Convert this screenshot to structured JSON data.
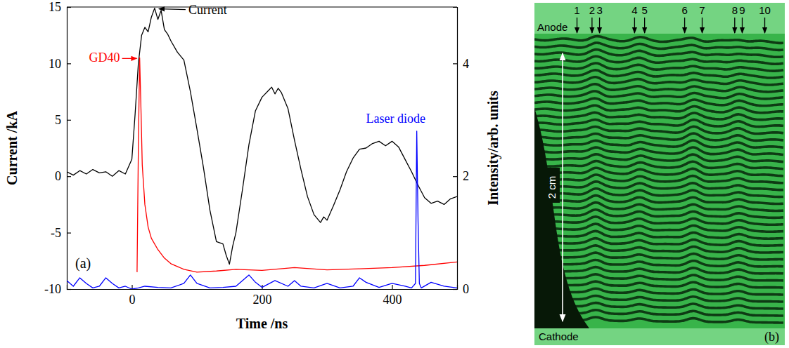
{
  "chart_data": {
    "type": "line",
    "panel_label": "(a)",
    "x_label": "Time /ns",
    "y_label": "Current /kA",
    "y2_label": "Intensity/arb. units",
    "xlim": [
      -100,
      500
    ],
    "xticks": [
      0,
      200,
      400
    ],
    "ylim": [
      -10,
      15
    ],
    "yticks": [
      -10,
      -5,
      0,
      5,
      10,
      15
    ],
    "y2lim": [
      0,
      5
    ],
    "y2ticks": [
      0,
      2,
      4
    ],
    "series": [
      {
        "name": "Current",
        "color": "#000000",
        "x": [
          -100,
          -90,
          -80,
          -70,
          -60,
          -50,
          -40,
          -30,
          -20,
          -10,
          0,
          5,
          10,
          15,
          20,
          25,
          30,
          35,
          40,
          45,
          50,
          55,
          60,
          70,
          80,
          90,
          100,
          110,
          120,
          130,
          140,
          145,
          150,
          155,
          160,
          170,
          180,
          190,
          200,
          210,
          215,
          220,
          225,
          230,
          240,
          250,
          260,
          270,
          280,
          290,
          295,
          300,
          310,
          320,
          330,
          340,
          350,
          360,
          370,
          380,
          390,
          400,
          410,
          420,
          430,
          440,
          450,
          460,
          470,
          480,
          490,
          500
        ],
        "values": [
          0.4,
          0.1,
          0.5,
          0.2,
          0.6,
          0.3,
          0.4,
          0.0,
          0.5,
          0.2,
          1.5,
          5.5,
          10.0,
          12.5,
          13.2,
          12.8,
          14.1,
          14.9,
          13.9,
          14.7,
          13.0,
          12.6,
          12.0,
          11.0,
          10.3,
          7.5,
          4.2,
          0.8,
          -3.0,
          -5.8,
          -6.0,
          -7.0,
          -7.8,
          -6.2,
          -5.0,
          -1.2,
          2.8,
          5.8,
          7.0,
          7.6,
          7.9,
          7.3,
          7.8,
          7.4,
          6.0,
          3.2,
          0.6,
          -1.8,
          -3.4,
          -4.1,
          -3.6,
          -3.9,
          -2.6,
          -1.2,
          0.4,
          1.6,
          2.4,
          2.5,
          2.9,
          3.1,
          2.7,
          3.1,
          2.6,
          1.5,
          0.4,
          -0.8,
          -1.9,
          -2.4,
          -2.2,
          -2.5,
          -2.0,
          -1.8
        ]
      },
      {
        "name": "GD40",
        "color": "#ff0000",
        "axis": "y2",
        "x": [
          8,
          10,
          12,
          14,
          16,
          20,
          25,
          30,
          40,
          50,
          60,
          80,
          100,
          130,
          160,
          200,
          250,
          300,
          350,
          400,
          450,
          500
        ],
        "values": [
          0.3,
          2.5,
          4.1,
          3.2,
          2.2,
          1.5,
          1.1,
          0.9,
          0.7,
          0.55,
          0.45,
          0.35,
          0.3,
          0.32,
          0.35,
          0.33,
          0.38,
          0.34,
          0.36,
          0.38,
          0.42,
          0.48
        ]
      },
      {
        "name": "Laser diode",
        "color": "#0000ff",
        "axis": "y2",
        "x": [
          -100,
          -90,
          -80,
          -70,
          -60,
          -50,
          -40,
          -30,
          -20,
          -10,
          0,
          10,
          20,
          40,
          60,
          80,
          90,
          100,
          120,
          140,
          160,
          170,
          180,
          190,
          200,
          220,
          240,
          250,
          260,
          280,
          300,
          320,
          340,
          350,
          360,
          380,
          400,
          420,
          430,
          436,
          438,
          440,
          442,
          445,
          460,
          480,
          500
        ],
        "values": [
          0.15,
          0.05,
          0.2,
          0.1,
          0.02,
          0.05,
          0.2,
          0.1,
          0.02,
          0.05,
          0.0,
          0.02,
          0.05,
          0.03,
          0.02,
          0.1,
          0.25,
          0.1,
          0.02,
          0.03,
          0.05,
          0.15,
          0.25,
          0.12,
          0.03,
          0.15,
          0.05,
          0.15,
          0.05,
          0.02,
          0.1,
          0.02,
          0.05,
          0.2,
          0.12,
          0.03,
          0.1,
          0.05,
          0.02,
          0.1,
          2.8,
          1.2,
          0.1,
          0.02,
          0.12,
          0.05,
          0.02
        ]
      }
    ]
  },
  "image": {
    "panel_label": "(b)",
    "anode_label": "Anode",
    "cathode_label": "Cathode",
    "scale_label": "2 cm",
    "markers": [
      1,
      2,
      3,
      4,
      5,
      6,
      7,
      8,
      9,
      10
    ]
  }
}
